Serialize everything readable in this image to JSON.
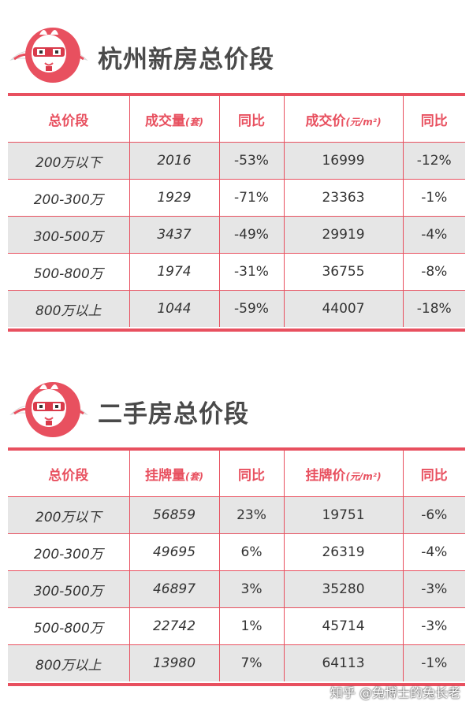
{
  "colors": {
    "accent": "#e8505f",
    "row_shade": "#e6e6e6",
    "title": "#4a4a4a"
  },
  "section1": {
    "title": "杭州新房总价段",
    "headers": {
      "c1": "总价段",
      "c2": "成交量",
      "c2_unit": "(套)",
      "c3": "同比",
      "c4": "成交价",
      "c4_unit": "(元/m²)",
      "c5": "同比"
    },
    "rows": [
      [
        "200万以下",
        "2016",
        "-53%",
        "16999",
        "-12%"
      ],
      [
        "200-300万",
        "1929",
        "-71%",
        "23363",
        "-1%"
      ],
      [
        "300-500万",
        "3437",
        "-49%",
        "29919",
        "-4%"
      ],
      [
        "500-800万",
        "1974",
        "-31%",
        "36755",
        "-8%"
      ],
      [
        "800万以上",
        "1044",
        "-59%",
        "44007",
        "-18%"
      ]
    ]
  },
  "section2": {
    "title": "二手房总价段",
    "headers": {
      "c1": "总价段",
      "c2": "挂牌量",
      "c2_unit": "(套)",
      "c3": "同比",
      "c4": "挂牌价",
      "c4_unit": "(元/m²)",
      "c5": "同比"
    },
    "rows": [
      [
        "200万以下",
        "56859",
        "23%",
        "19751",
        "-6%"
      ],
      [
        "200-300万",
        "49695",
        "6%",
        "26319",
        "-4%"
      ],
      [
        "300-500万",
        "46897",
        "3%",
        "35280",
        "-3%"
      ],
      [
        "500-800万",
        "22742",
        "1%",
        "45714",
        "-3%"
      ],
      [
        "800万以上",
        "13980",
        "7%",
        "64113",
        "-1%"
      ]
    ]
  },
  "watermark": "知乎 @兔博士的兔长老"
}
